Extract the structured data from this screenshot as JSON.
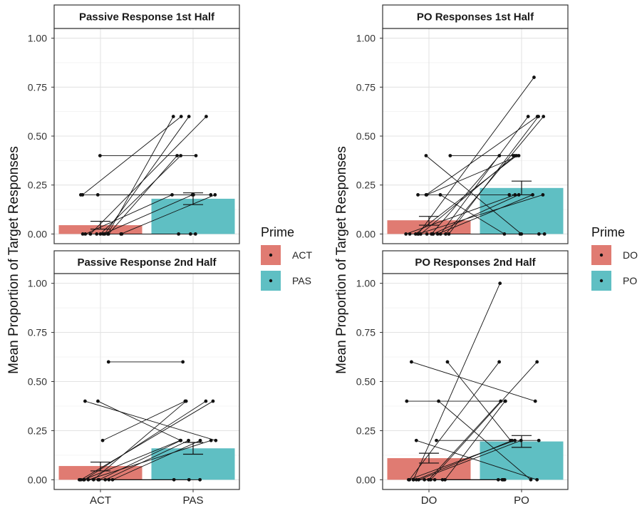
{
  "chart_data": [
    {
      "type": "bar",
      "title": "Passive Response 1st Half",
      "categories": [
        "ACT",
        "PAS"
      ],
      "values": [
        0.045,
        0.18
      ],
      "error": [
        [
          0.025,
          0.065
        ],
        [
          0.15,
          0.21
        ]
      ],
      "ylabel": "Mean Proportion of Target Responses",
      "xlabel": "",
      "ylim": [
        0,
        1
      ],
      "yticks": [
        "0.00",
        "0.25",
        "0.50",
        "0.75",
        "1.00"
      ],
      "show_xticks": false,
      "colors": [
        "#e07b72",
        "#5fbfc3"
      ],
      "pairs": [
        [
          0.4,
          0.4
        ],
        [
          0.2,
          0.6
        ],
        [
          0.2,
          0.2
        ],
        [
          0.2,
          0.2
        ],
        [
          0.0,
          0.6
        ],
        [
          0.0,
          0.6
        ],
        [
          0.0,
          0.6
        ],
        [
          0.0,
          0.4
        ],
        [
          0.0,
          0.4
        ],
        [
          0.0,
          0.2
        ],
        [
          0.0,
          0.2
        ],
        [
          0.0,
          0.2
        ],
        [
          0.0,
          0.0
        ],
        [
          0.0,
          0.0
        ],
        [
          0.0,
          0.0
        ]
      ]
    },
    {
      "type": "bar",
      "title": "Passive Response 2nd Half",
      "categories": [
        "ACT",
        "PAS"
      ],
      "values": [
        0.07,
        0.16
      ],
      "error": [
        [
          0.045,
          0.09
        ],
        [
          0.13,
          0.19
        ]
      ],
      "ylabel": "",
      "xlabel": "",
      "ylim": [
        0,
        1
      ],
      "yticks": [
        "0.00",
        "0.25",
        "0.50",
        "0.75",
        "1.00"
      ],
      "show_xticks": true,
      "colors": [
        "#e07b72",
        "#5fbfc3"
      ],
      "pairs": [
        [
          0.6,
          0.6
        ],
        [
          0.4,
          0.2
        ],
        [
          0.4,
          0.2
        ],
        [
          0.2,
          0.4
        ],
        [
          0.0,
          0.4
        ],
        [
          0.0,
          0.4
        ],
        [
          0.0,
          0.4
        ],
        [
          0.0,
          0.2
        ],
        [
          0.0,
          0.2
        ],
        [
          0.0,
          0.2
        ],
        [
          0.0,
          0.2
        ],
        [
          0.0,
          0.2
        ],
        [
          0.0,
          0.0
        ],
        [
          0.0,
          0.0
        ],
        [
          0.0,
          0.0
        ]
      ]
    },
    {
      "type": "bar",
      "title": "PO Responses 1st Half",
      "categories": [
        "DO",
        "PO"
      ],
      "values": [
        0.07,
        0.235
      ],
      "error": [
        [
          0.045,
          0.09
        ],
        [
          0.2,
          0.27
        ]
      ],
      "ylabel": "Mean Proportion of Target Responses",
      "xlabel": "",
      "ylim": [
        0,
        1
      ],
      "yticks": [
        "0.00",
        "0.25",
        "0.50",
        "0.75",
        "1.00"
      ],
      "show_xticks": false,
      "colors": [
        "#e07b72",
        "#5fbfc3"
      ],
      "pairs": [
        [
          0.4,
          0.4
        ],
        [
          0.4,
          0.0
        ],
        [
          0.2,
          0.6
        ],
        [
          0.2,
          0.4
        ],
        [
          0.2,
          0.2
        ],
        [
          0.2,
          0.0
        ],
        [
          0.0,
          0.8
        ],
        [
          0.0,
          0.6
        ],
        [
          0.0,
          0.6
        ],
        [
          0.0,
          0.6
        ],
        [
          0.0,
          0.4
        ],
        [
          0.0,
          0.4
        ],
        [
          0.0,
          0.4
        ],
        [
          0.0,
          0.2
        ],
        [
          0.0,
          0.2
        ],
        [
          0.0,
          0.2
        ],
        [
          0.0,
          0.2
        ],
        [
          0.0,
          0.0
        ],
        [
          0.0,
          0.0
        ],
        [
          0.0,
          0.0
        ]
      ]
    },
    {
      "type": "bar",
      "title": "PO Responses 2nd Half",
      "categories": [
        "DO",
        "PO"
      ],
      "values": [
        0.11,
        0.195
      ],
      "error": [
        [
          0.085,
          0.135
        ],
        [
          0.165,
          0.225
        ]
      ],
      "ylabel": "",
      "xlabel": "",
      "ylim": [
        0,
        1
      ],
      "yticks": [
        "0.00",
        "0.25",
        "0.50",
        "0.75",
        "1.00"
      ],
      "show_xticks": true,
      "colors": [
        "#e07b72",
        "#5fbfc3"
      ],
      "pairs": [
        [
          0.6,
          0.4
        ],
        [
          0.6,
          0.2
        ],
        [
          0.4,
          0.4
        ],
        [
          0.4,
          0.0
        ],
        [
          0.2,
          0.2
        ],
        [
          0.2,
          0.0
        ],
        [
          0.0,
          1.0
        ],
        [
          0.0,
          0.6
        ],
        [
          0.0,
          0.6
        ],
        [
          0.0,
          0.4
        ],
        [
          0.0,
          0.4
        ],
        [
          0.0,
          0.2
        ],
        [
          0.0,
          0.2
        ],
        [
          0.0,
          0.2
        ],
        [
          0.0,
          0.0
        ],
        [
          0.0,
          0.0
        ],
        [
          0.0,
          0.0
        ],
        [
          0.0,
          0.0
        ]
      ]
    }
  ],
  "legends": [
    {
      "title": "Prime",
      "items": [
        {
          "label": "ACT",
          "color": "#e07b72"
        },
        {
          "label": "PAS",
          "color": "#5fbfc3"
        }
      ]
    },
    {
      "title": "Prime",
      "items": [
        {
          "label": "DO",
          "color": "#e07b72"
        },
        {
          "label": "PO",
          "color": "#5fbfc3"
        }
      ]
    }
  ]
}
